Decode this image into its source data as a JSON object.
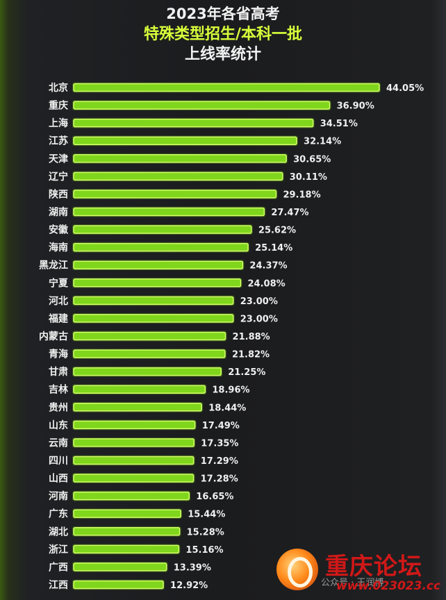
{
  "title_line1": "2023年各省高考",
  "title_line2": "特殊类型招生/本科一批",
  "title_line3": "上线率统计",
  "colors": {
    "bar": "#7fd61c",
    "bar_highlight": "#d8ff6a",
    "title_accent": "#d8ff3a",
    "text": "#f0f0f0"
  },
  "chart_data": {
    "type": "bar",
    "orientation": "horizontal",
    "title": "2023年各省高考 特殊类型招生/本科一批 上线率统计",
    "categories": [
      "北京",
      "重庆",
      "上海",
      "江苏",
      "天津",
      "辽宁",
      "陕西",
      "湖南",
      "安徽",
      "海南",
      "黑龙江",
      "宁夏",
      "河北",
      "福建",
      "内蒙古",
      "青海",
      "甘肃",
      "吉林",
      "贵州",
      "山东",
      "云南",
      "四川",
      "山西",
      "河南",
      "广东",
      "湖北",
      "浙江",
      "广西",
      "江西"
    ],
    "values": [
      44.05,
      36.9,
      34.51,
      32.14,
      30.65,
      30.11,
      29.18,
      27.47,
      25.62,
      25.14,
      24.37,
      24.08,
      23.0,
      23.0,
      21.88,
      21.82,
      21.25,
      18.96,
      18.44,
      17.49,
      17.35,
      17.29,
      17.28,
      16.65,
      15.44,
      15.28,
      15.16,
      13.39,
      12.92
    ],
    "value_labels": [
      "44.05%",
      "36.90%",
      "34.51%",
      "32.14%",
      "30.65%",
      "30.11%",
      "29.18%",
      "27.47%",
      "25.62%",
      "25.14%",
      "24.37%",
      "24.08%",
      "23.00%",
      "23.00%",
      "21.88%",
      "21.82%",
      "21.25%",
      "18.96%",
      "18.44%",
      "17.49%",
      "17.35%",
      "17.29%",
      "17.28%",
      "16.65%",
      "15.44%",
      "15.28%",
      "15.16%",
      "13.39%",
      "12.92%"
    ],
    "unit": "%",
    "grid": false,
    "legend": "none"
  },
  "watermark": {
    "site": "重庆论坛",
    "url": "www.023023.cc",
    "account": "公众号 · 王润博"
  }
}
